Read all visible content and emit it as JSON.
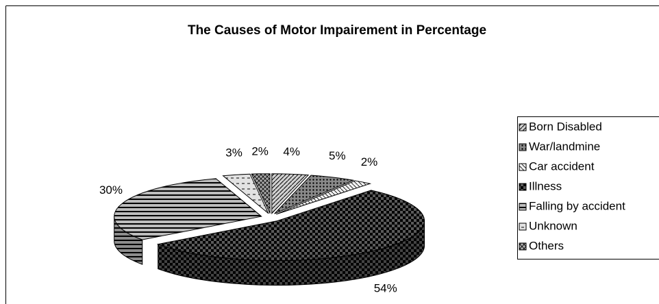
{
  "chart_data": {
    "type": "pie",
    "title": "The Causes of Motor Impairement in Percentage",
    "categories": [
      "Born Disabled",
      "War/landmine",
      "Car accident",
      "Illness",
      "Falling by accident",
      "Unknown",
      "Others"
    ],
    "values": [
      4,
      5,
      2,
      54,
      30,
      3,
      2
    ],
    "value_labels": [
      "4%",
      "5%",
      "2%",
      "54%",
      "30%",
      "3%",
      "2%"
    ],
    "colors": [
      "#d0d0d0",
      "#8a8a8a",
      "#f0f0f0",
      "#5a5a5a",
      "#bdbdbd",
      "#e2e2e2",
      "#a8a8a8"
    ],
    "legend": "right"
  }
}
